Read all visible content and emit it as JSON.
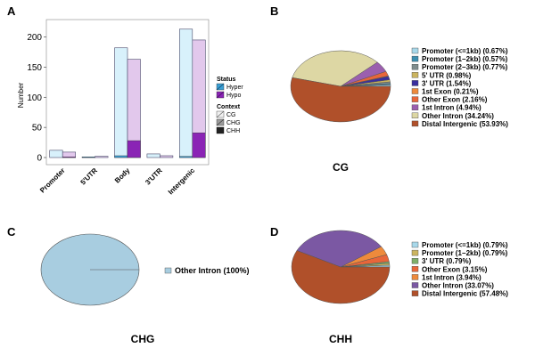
{
  "panels": {
    "a": "A",
    "b": "B",
    "c": "C",
    "d": "D"
  },
  "chart_data": [
    {
      "id": "A",
      "type": "bar",
      "ylabel": "Number",
      "xlabel": "",
      "ylim": [
        0,
        220
      ],
      "yticks": [
        0,
        50,
        100,
        150,
        200
      ],
      "categories": [
        "Promoter",
        "5'UTR",
        "Body",
        "3'UTR",
        "Intergenic"
      ],
      "series": [
        {
          "name": "Hyper",
          "color_fill": "#d8f1fb",
          "color_chh": "#3a9fd4",
          "total": [
            12,
            1,
            182,
            6,
            213
          ],
          "CG": [
            12,
            1,
            179,
            6,
            211
          ],
          "CHG": [
            0,
            0,
            0,
            0,
            0
          ],
          "CHH": [
            0,
            1,
            3,
            0,
            2
          ]
        },
        {
          "name": "Hypo",
          "color_fill": "#e2c8ec",
          "color_chh": "#8a24b5",
          "total": [
            9,
            2,
            163,
            3,
            195
          ],
          "CG": [
            8,
            2,
            135,
            3,
            154
          ],
          "CHG": [
            0,
            0,
            0,
            0,
            0
          ],
          "CHH": [
            1,
            0,
            28,
            0,
            41
          ]
        }
      ],
      "legend": {
        "status_title": "Status",
        "status_items": [
          "Hyper",
          "Hypo"
        ],
        "context_title": "Context",
        "context_items": [
          "CG",
          "CHG",
          "CHH"
        ]
      },
      "grid": false
    },
    {
      "id": "B",
      "type": "pie",
      "title": "CG",
      "slices": [
        {
          "label": "Promoter (<=1kb) (0.67%)",
          "value": 0.67,
          "color": "#a8d8ea"
        },
        {
          "label": "Promoter (1−2kb) (0.57%)",
          "value": 0.57,
          "color": "#3d8fb0"
        },
        {
          "label": "Promoter (2−3kb) (0.77%)",
          "value": 0.77,
          "color": "#7f8c8d"
        },
        {
          "label": "5' UTR (0.98%)",
          "value": 0.98,
          "color": "#cbb45f"
        },
        {
          "label": "3' UTR (1.54%)",
          "value": 1.54,
          "color": "#3a2f9e"
        },
        {
          "label": "1st Exon (0.21%)",
          "value": 0.21,
          "color": "#ee8a3c"
        },
        {
          "label": "Other Exon (2.16%)",
          "value": 2.16,
          "color": "#e8663a"
        },
        {
          "label": "1st Intron (4.94%)",
          "value": 4.94,
          "color": "#9b5fae"
        },
        {
          "label": "Other Intron (34.24%)",
          "value": 34.24,
          "color": "#ddd7a4"
        },
        {
          "label": "Distal Intergenic (53.93%)",
          "value": 53.93,
          "color": "#b0502a"
        }
      ]
    },
    {
      "id": "C",
      "type": "pie",
      "title": "CHG",
      "slices": [
        {
          "label": "Other Intron (100%)",
          "value": 100,
          "color": "#a8cde0"
        }
      ]
    },
    {
      "id": "D",
      "type": "pie",
      "title": "CHH",
      "slices": [
        {
          "label": "Promoter (<=1kb) (0.79%)",
          "value": 0.79,
          "color": "#a8d8ea"
        },
        {
          "label": "Promoter (1−2kb) (0.79%)",
          "value": 0.79,
          "color": "#cbb45f"
        },
        {
          "label": "3' UTR (0.79%)",
          "value": 0.79,
          "color": "#7fae6a"
        },
        {
          "label": "Other Exon (3.15%)",
          "value": 3.15,
          "color": "#e8663a"
        },
        {
          "label": "1st Intron (3.94%)",
          "value": 3.94,
          "color": "#ee8a3c"
        },
        {
          "label": "Other Intron (33.07%)",
          "value": 33.07,
          "color": "#7b58a3"
        },
        {
          "label": "Distal Intergenic (57.48%)",
          "value": 57.48,
          "color": "#b0502a"
        }
      ]
    }
  ]
}
